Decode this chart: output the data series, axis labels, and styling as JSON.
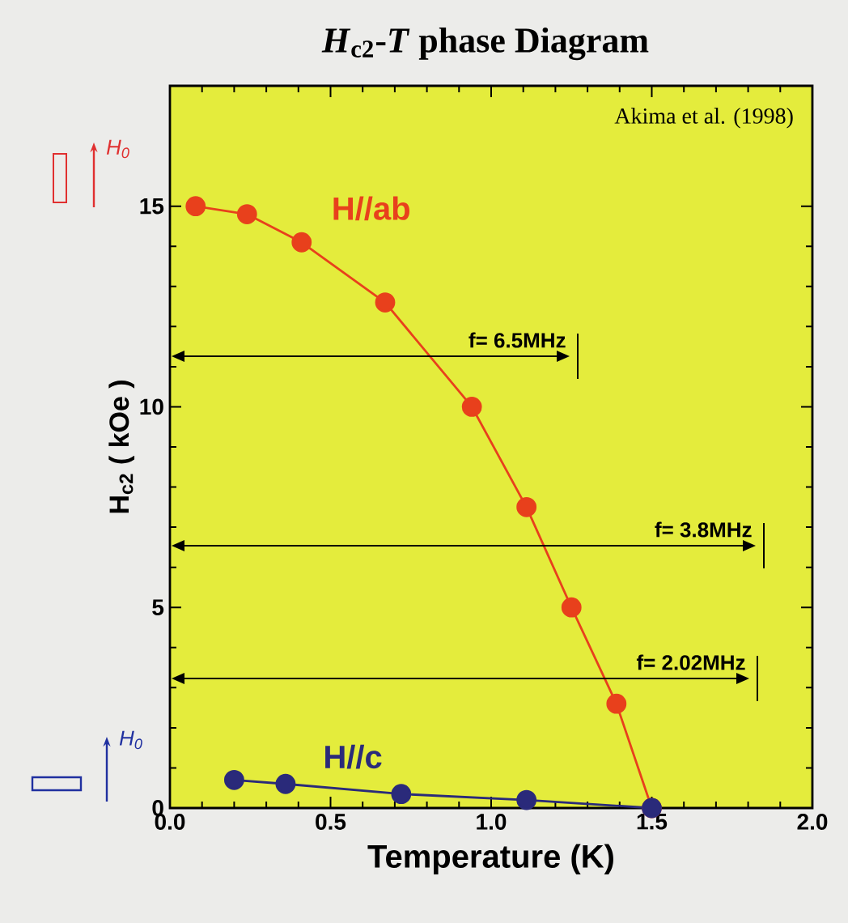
{
  "chart_data": {
    "type": "line",
    "title": "*H*$_{c2}$-*T*   phase Diagram",
    "xlabel": "Temperature (K)",
    "ylabel": "H$_{c2}$ ( kOe )",
    "xlim": [
      0,
      2.0
    ],
    "ylim": [
      0,
      18
    ],
    "xticks": [
      {
        "value": 0,
        "label": "0.0"
      },
      {
        "value": 0.5,
        "label": "0.5"
      },
      {
        "value": 1.0,
        "label": "1.0"
      },
      {
        "value": 1.5,
        "label": "1.5"
      },
      {
        "value": 2.0,
        "label": "2.0"
      }
    ],
    "yticks": [
      0,
      5,
      10,
      15
    ],
    "marker": "circle",
    "line_style": "solid",
    "grid": false,
    "legend": false,
    "series": [
      {
        "name": "H//ab",
        "color": "#e8401c",
        "x": [
          0.08,
          0.24,
          0.41,
          0.67,
          0.94,
          1.11,
          1.25,
          1.39,
          1.5
        ],
        "values": [
          15.0,
          14.8,
          14.1,
          12.6,
          10.0,
          7.5,
          5.0,
          2.6,
          0
        ]
      },
      {
        "name": "H//c",
        "color": "#2a2a7a",
        "x": [
          0.2,
          0.36,
          0.72,
          1.11,
          1.5
        ],
        "values": [
          0.7,
          0.6,
          0.35,
          0.2,
          0
        ]
      }
    ],
    "annotations": [
      "Akima et al. (1998)",
      "f= 6.5MHz",
      "f= 3.8MHz",
      "f= 2.02MHz",
      "H$_{0}$",
      "H$_{0}$"
    ]
  }
}
